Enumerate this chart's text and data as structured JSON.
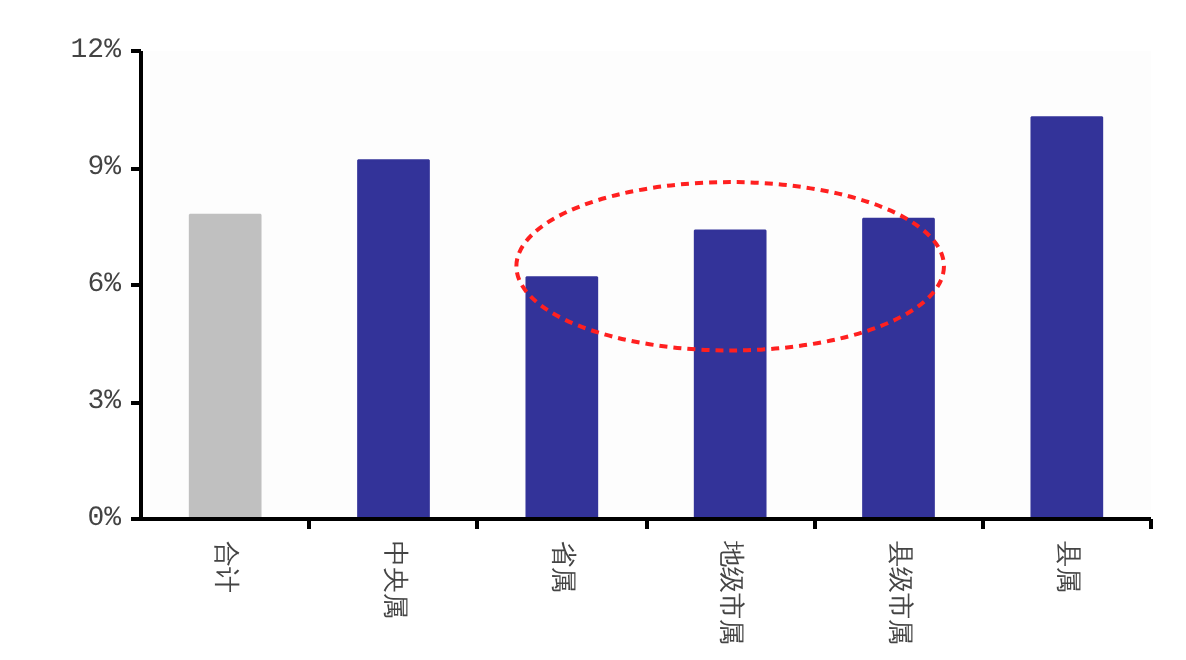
{
  "chart_data": {
    "type": "bar",
    "categories": [
      "合计",
      "中央属",
      "省属",
      "地级市属",
      "县级市属",
      "县属"
    ],
    "values": [
      7.8,
      9.2,
      6.2,
      7.4,
      7.7,
      10.3
    ],
    "colors": [
      "#c0c0c0",
      "#333399",
      "#333399",
      "#333399",
      "#333399",
      "#333399"
    ],
    "ylim": [
      0,
      12
    ],
    "yticks": [
      {
        "value": 0,
        "label": "0%"
      },
      {
        "value": 3,
        "label": "3%"
      },
      {
        "value": 6,
        "label": "6%"
      },
      {
        "value": 9,
        "label": "9%"
      },
      {
        "value": 12,
        "label": "12%"
      }
    ],
    "grid": false
  }
}
